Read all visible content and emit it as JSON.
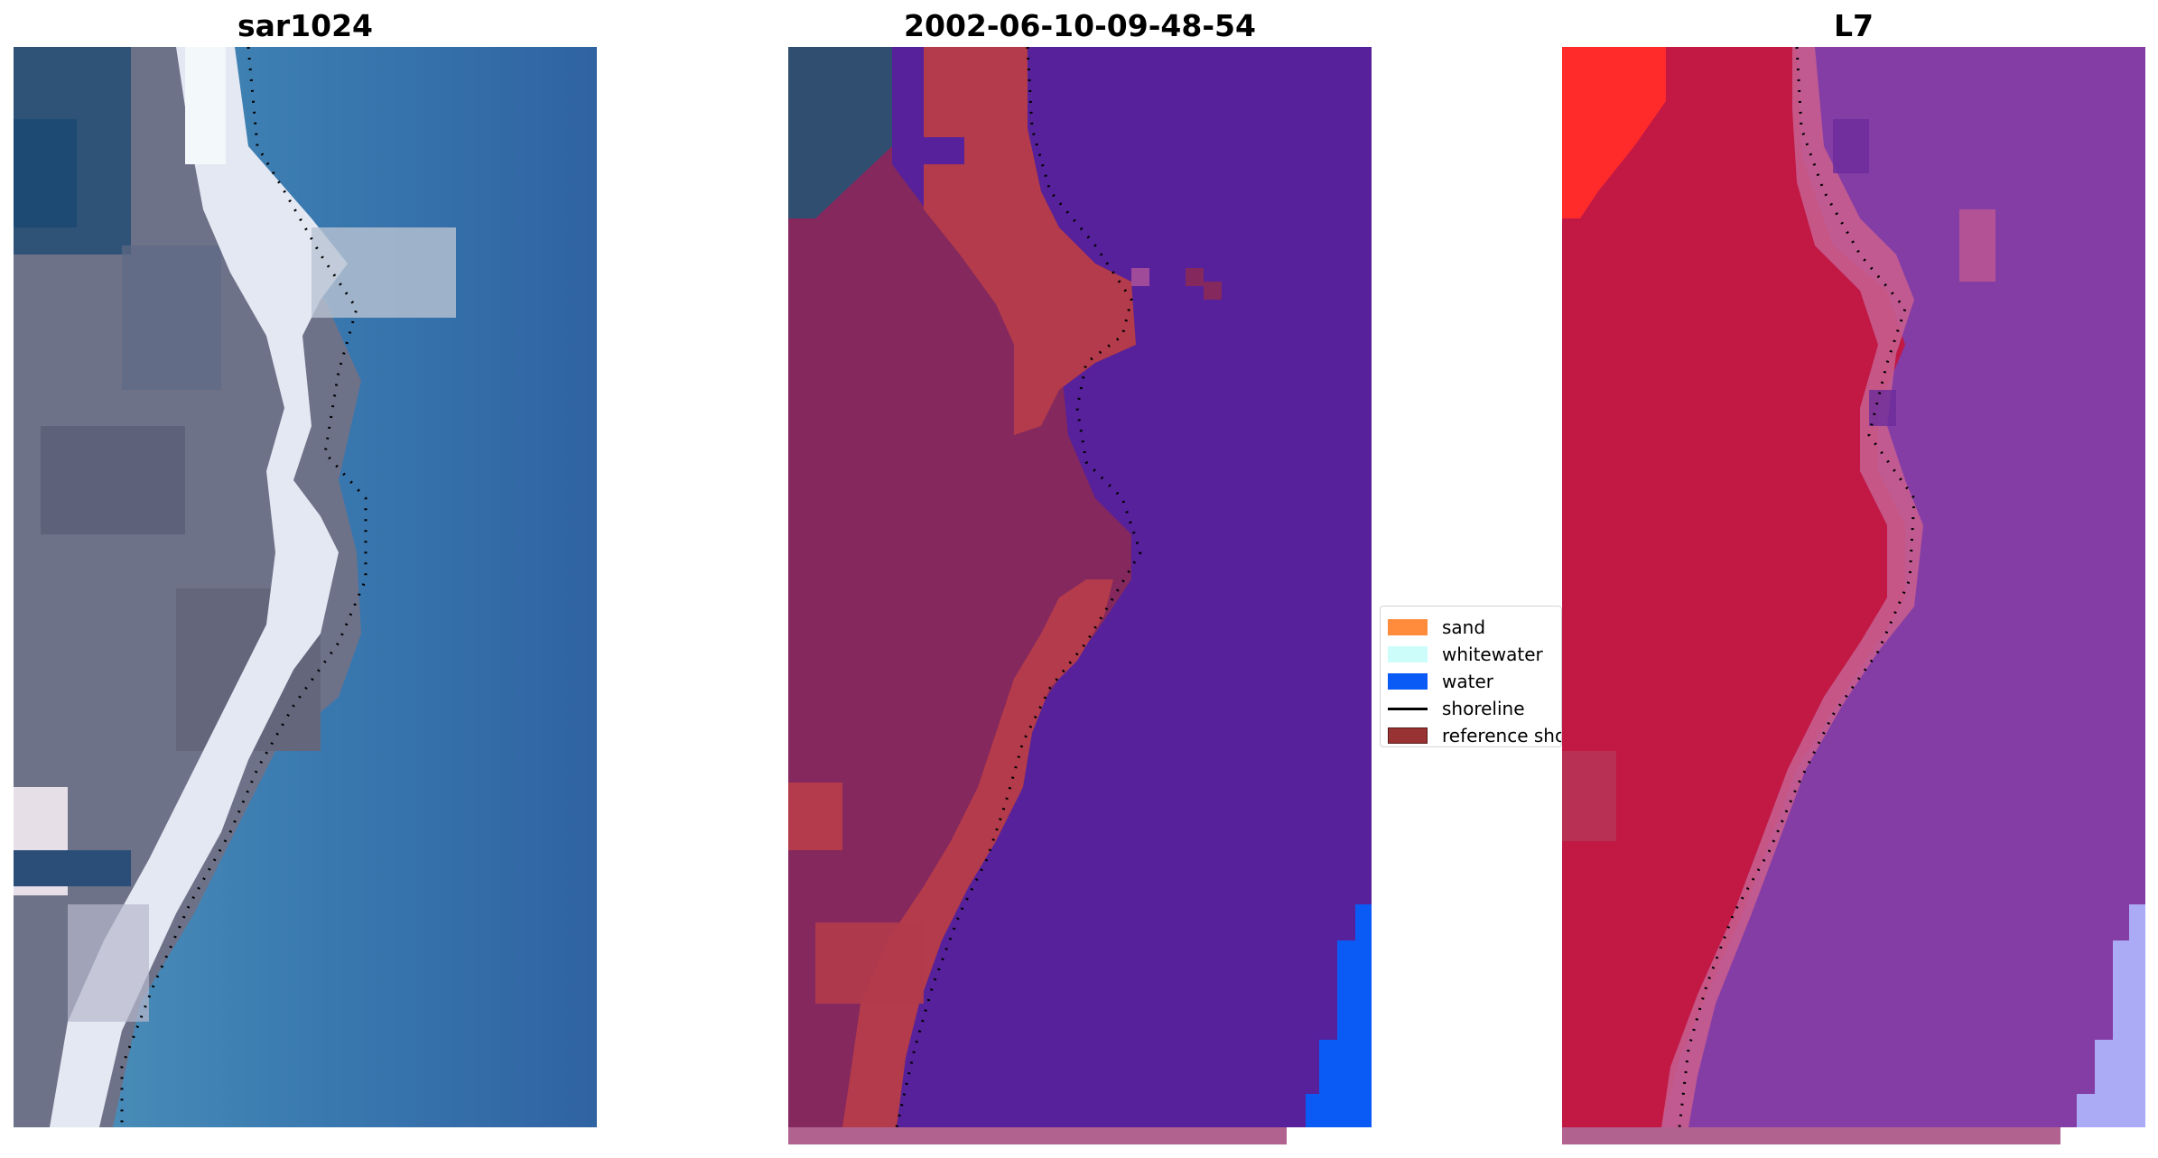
{
  "panels": [
    {
      "title": "sar1024"
    },
    {
      "title": "2002-06-10-09-48-54"
    },
    {
      "title": "L7"
    }
  ],
  "legend": {
    "items": [
      {
        "label": "sand",
        "color": "#ff8c3c",
        "kind": "patch"
      },
      {
        "label": "whitewater",
        "color": "#cdfdfb",
        "kind": "patch"
      },
      {
        "label": "water",
        "color": "#0a5bf5",
        "kind": "patch"
      },
      {
        "label": "shoreline",
        "color": "#000000",
        "kind": "line"
      },
      {
        "label": "reference shoreline buffer",
        "color": "#993333",
        "kind": "patch"
      }
    ]
  },
  "colors": {
    "rgb_land": "#6f7486",
    "rgb_sand": "#dfe2ec",
    "rgb_water": "#3a78ad",
    "classified_land": "#84285e",
    "classified_buffer": "#b33b4b",
    "classified_water": "#56219a",
    "classified_open_water": "#0a5bf5",
    "ir_land": "#c11844",
    "ir_sand": "#c65d8e",
    "ir_water": "#853da6",
    "ir_bright": "#ff2b2b",
    "ir_lavender": "#abaaf5",
    "bottom_strip": "#b2628f"
  }
}
